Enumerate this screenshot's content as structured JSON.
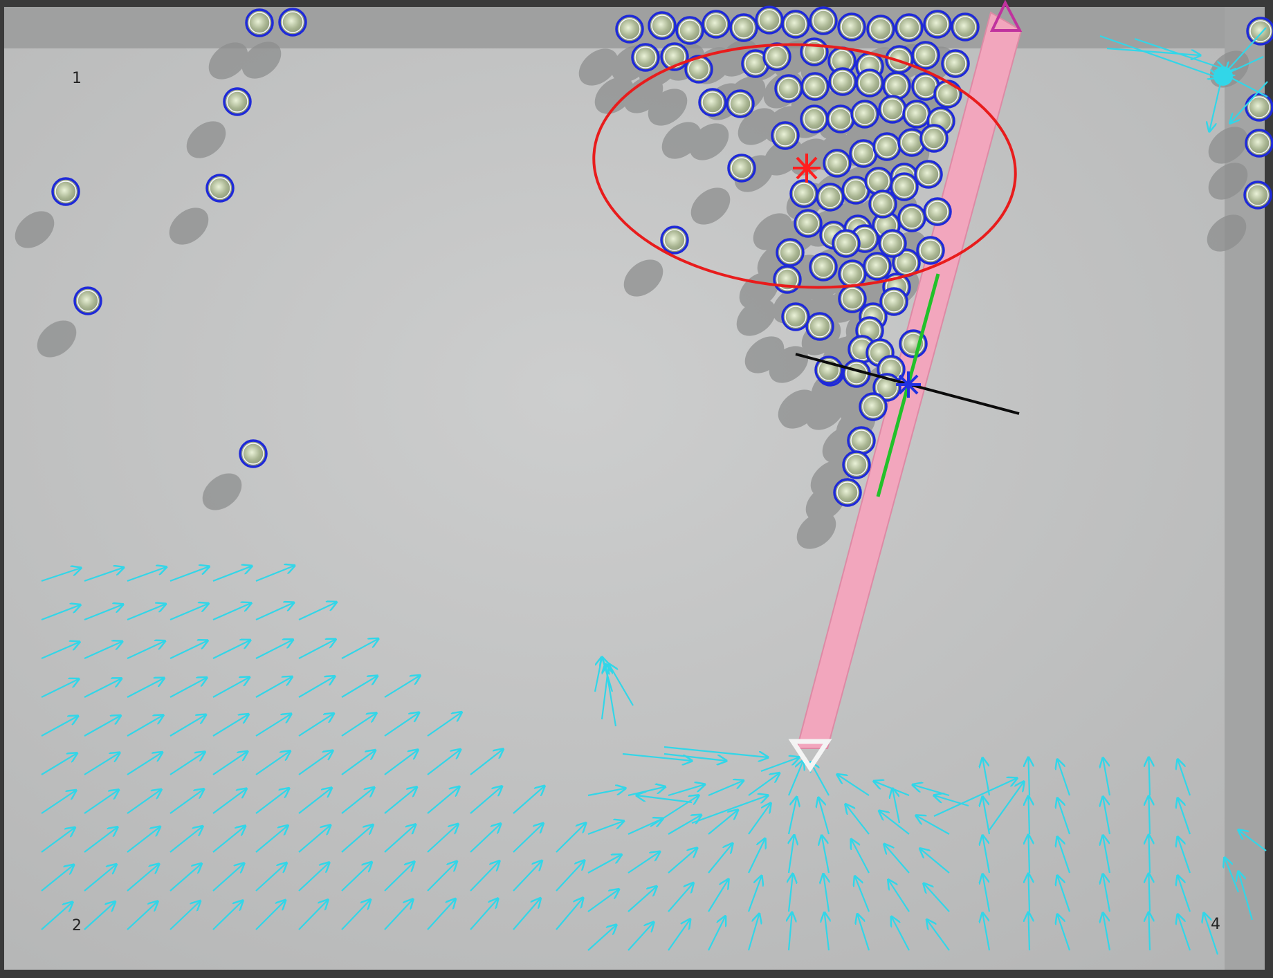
{
  "corner_labels": {
    "c1": "1",
    "c2": "2",
    "c4": "4"
  },
  "colors": {
    "surface": "#c3c4c4",
    "frame": "#3a3a3a",
    "bar": "#f2a6bd",
    "bead_ring": "#1f2ad8",
    "bead_fill": "#a9b592",
    "flow_arrow": "#32d6e8",
    "ellipse": "#e81c1c",
    "normal_line": "#0c0c0c",
    "tangent_line": "#22c12a",
    "top_marker": "#c0329e",
    "bottom_marker": "#f4f4f4"
  }
}
